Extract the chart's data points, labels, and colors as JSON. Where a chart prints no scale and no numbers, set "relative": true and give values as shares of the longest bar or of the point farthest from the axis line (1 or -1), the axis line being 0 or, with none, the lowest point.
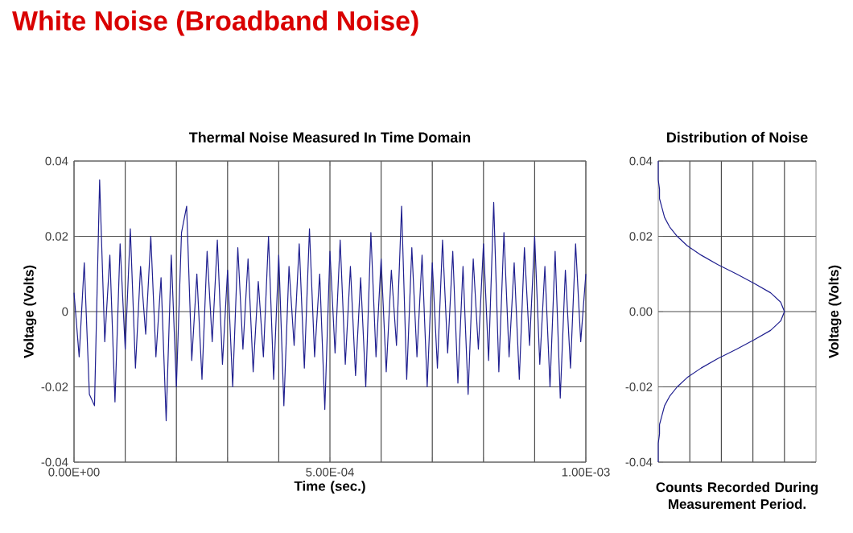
{
  "chart_data": [
    {
      "type": "line",
      "title": "Thermal Noise Measured In Time Domain",
      "xlabel": "Time (sec.)",
      "ylabel": "Voltage (Volts)",
      "annotations": [
        "White Noise (Broadband Noise)"
      ],
      "color": "#1f1f8f",
      "marker": "none",
      "line_style": "solid",
      "grid": true,
      "xlim": [
        0,
        0.001
      ],
      "ylim": [
        -0.04,
        0.04
      ],
      "xticks": [
        {
          "value": 0,
          "label": "0.00E+00"
        },
        {
          "value": 0.0001,
          "label": null
        },
        {
          "value": 0.0002,
          "label": null
        },
        {
          "value": 0.0003,
          "label": null
        },
        {
          "value": 0.0004,
          "label": null
        },
        {
          "value": 0.0005,
          "label": "5.00E-04"
        },
        {
          "value": 0.0006,
          "label": null
        },
        {
          "value": 0.0007,
          "label": null
        },
        {
          "value": 0.0008,
          "label": null
        },
        {
          "value": 0.0009,
          "label": null
        },
        {
          "value": 0.001,
          "label": "1.00E-03"
        }
      ],
      "yticks": [
        -0.04,
        -0.02,
        0,
        0.02,
        0.04
      ],
      "x": [
        0,
        1e-05,
        2e-05,
        3e-05,
        4e-05,
        5e-05,
        6e-05,
        7e-05,
        8e-05,
        9e-05,
        0.0001,
        0.00011,
        0.00012,
        0.00013,
        0.00014,
        0.00015,
        0.00016,
        0.00017,
        0.00018,
        0.00019,
        0.0002,
        0.00021,
        0.00022,
        0.00023,
        0.00024,
        0.00025,
        0.00026,
        0.00027,
        0.00028,
        0.00029,
        0.0003,
        0.00031,
        0.00032,
        0.00033,
        0.00034,
        0.00035,
        0.00036,
        0.00037,
        0.00038,
        0.00039,
        0.0004,
        0.00041,
        0.00042,
        0.00043,
        0.00044,
        0.00045,
        0.00046,
        0.00047,
        0.00048,
        0.00049,
        0.0005,
        0.00051,
        0.00052,
        0.00053,
        0.00054,
        0.00055,
        0.00056,
        0.00057,
        0.00058,
        0.00059,
        0.0006,
        0.00061,
        0.00062,
        0.00063,
        0.00064,
        0.00065,
        0.00066,
        0.00067,
        0.00068,
        0.00069,
        0.0007,
        0.00071,
        0.00072,
        0.00073,
        0.00074,
        0.00075,
        0.00076,
        0.00077,
        0.00078,
        0.00079,
        0.0008,
        0.00081,
        0.00082,
        0.00083,
        0.00084,
        0.00085,
        0.00086,
        0.00087,
        0.00088,
        0.00089,
        0.0009,
        0.00091,
        0.00092,
        0.00093,
        0.00094,
        0.00095,
        0.00096,
        0.00097,
        0.00098,
        0.00099,
        0.001
      ],
      "values": [
        0.005,
        -0.012,
        0.013,
        -0.022,
        -0.025,
        0.035,
        -0.008,
        0.015,
        -0.024,
        0.018,
        -0.01,
        0.022,
        -0.015,
        0.012,
        -0.006,
        0.02,
        -0.012,
        0.009,
        -0.029,
        0.015,
        -0.02,
        0.021,
        0.028,
        -0.013,
        0.01,
        -0.018,
        0.016,
        -0.008,
        0.019,
        -0.014,
        0.011,
        -0.02,
        0.017,
        -0.01,
        0.014,
        -0.016,
        0.008,
        -0.012,
        0.02,
        -0.018,
        0.015,
        -0.025,
        0.012,
        -0.009,
        0.018,
        -0.015,
        0.022,
        -0.012,
        0.01,
        -0.026,
        0.016,
        -0.011,
        0.019,
        -0.014,
        0.012,
        -0.017,
        0.009,
        -0.02,
        0.021,
        -0.012,
        0.014,
        -0.016,
        0.011,
        -0.009,
        0.028,
        -0.018,
        0.017,
        -0.012,
        0.015,
        -0.02,
        0.013,
        -0.015,
        0.019,
        -0.011,
        0.016,
        -0.019,
        0.012,
        -0.022,
        0.014,
        -0.01,
        0.018,
        -0.013,
        0.029,
        -0.016,
        0.021,
        -0.012,
        0.013,
        -0.018,
        0.017,
        -0.009,
        0.02,
        -0.014,
        0.012,
        -0.02,
        0.016,
        -0.023,
        0.011,
        -0.015,
        0.018,
        -0.008,
        0.01
      ]
    },
    {
      "type": "line",
      "title": "Distribution of Noise",
      "xlabel": "Counts Recorded During Measurement Period.",
      "ylabel": "Voltage (Volts)",
      "color": "#1f1f8f",
      "marker": "none",
      "line_style": "solid",
      "grid": true,
      "relative": true,
      "orientation": "horizontal",
      "tick_labels": "y",
      "ylim": [
        -0.04,
        0.04
      ],
      "yticks": [
        -0.04,
        -0.02,
        {
          "value": 0,
          "label": "0.00"
        },
        0.02,
        0.04
      ],
      "x": [
        -0.04,
        -0.0375,
        -0.035,
        -0.0325,
        -0.03,
        -0.0275,
        -0.025,
        -0.0225,
        -0.02,
        -0.0175,
        -0.015,
        -0.0125,
        -0.01,
        -0.0075,
        -0.005,
        -0.0025,
        0,
        0.0025,
        0.005,
        0.0075,
        0.01,
        0.0125,
        0.015,
        0.0175,
        0.02,
        0.0225,
        0.025,
        0.0275,
        0.03,
        0.0325,
        0.035,
        0.0375,
        0.04
      ],
      "values": [
        0,
        0,
        0,
        0.01,
        0.01,
        0.03,
        0.05,
        0.09,
        0.15,
        0.23,
        0.34,
        0.47,
        0.62,
        0.76,
        0.89,
        0.97,
        1,
        0.97,
        0.89,
        0.76,
        0.62,
        0.47,
        0.34,
        0.23,
        0.15,
        0.09,
        0.05,
        0.03,
        0.01,
        0.01,
        0,
        0,
        0
      ]
    }
  ]
}
